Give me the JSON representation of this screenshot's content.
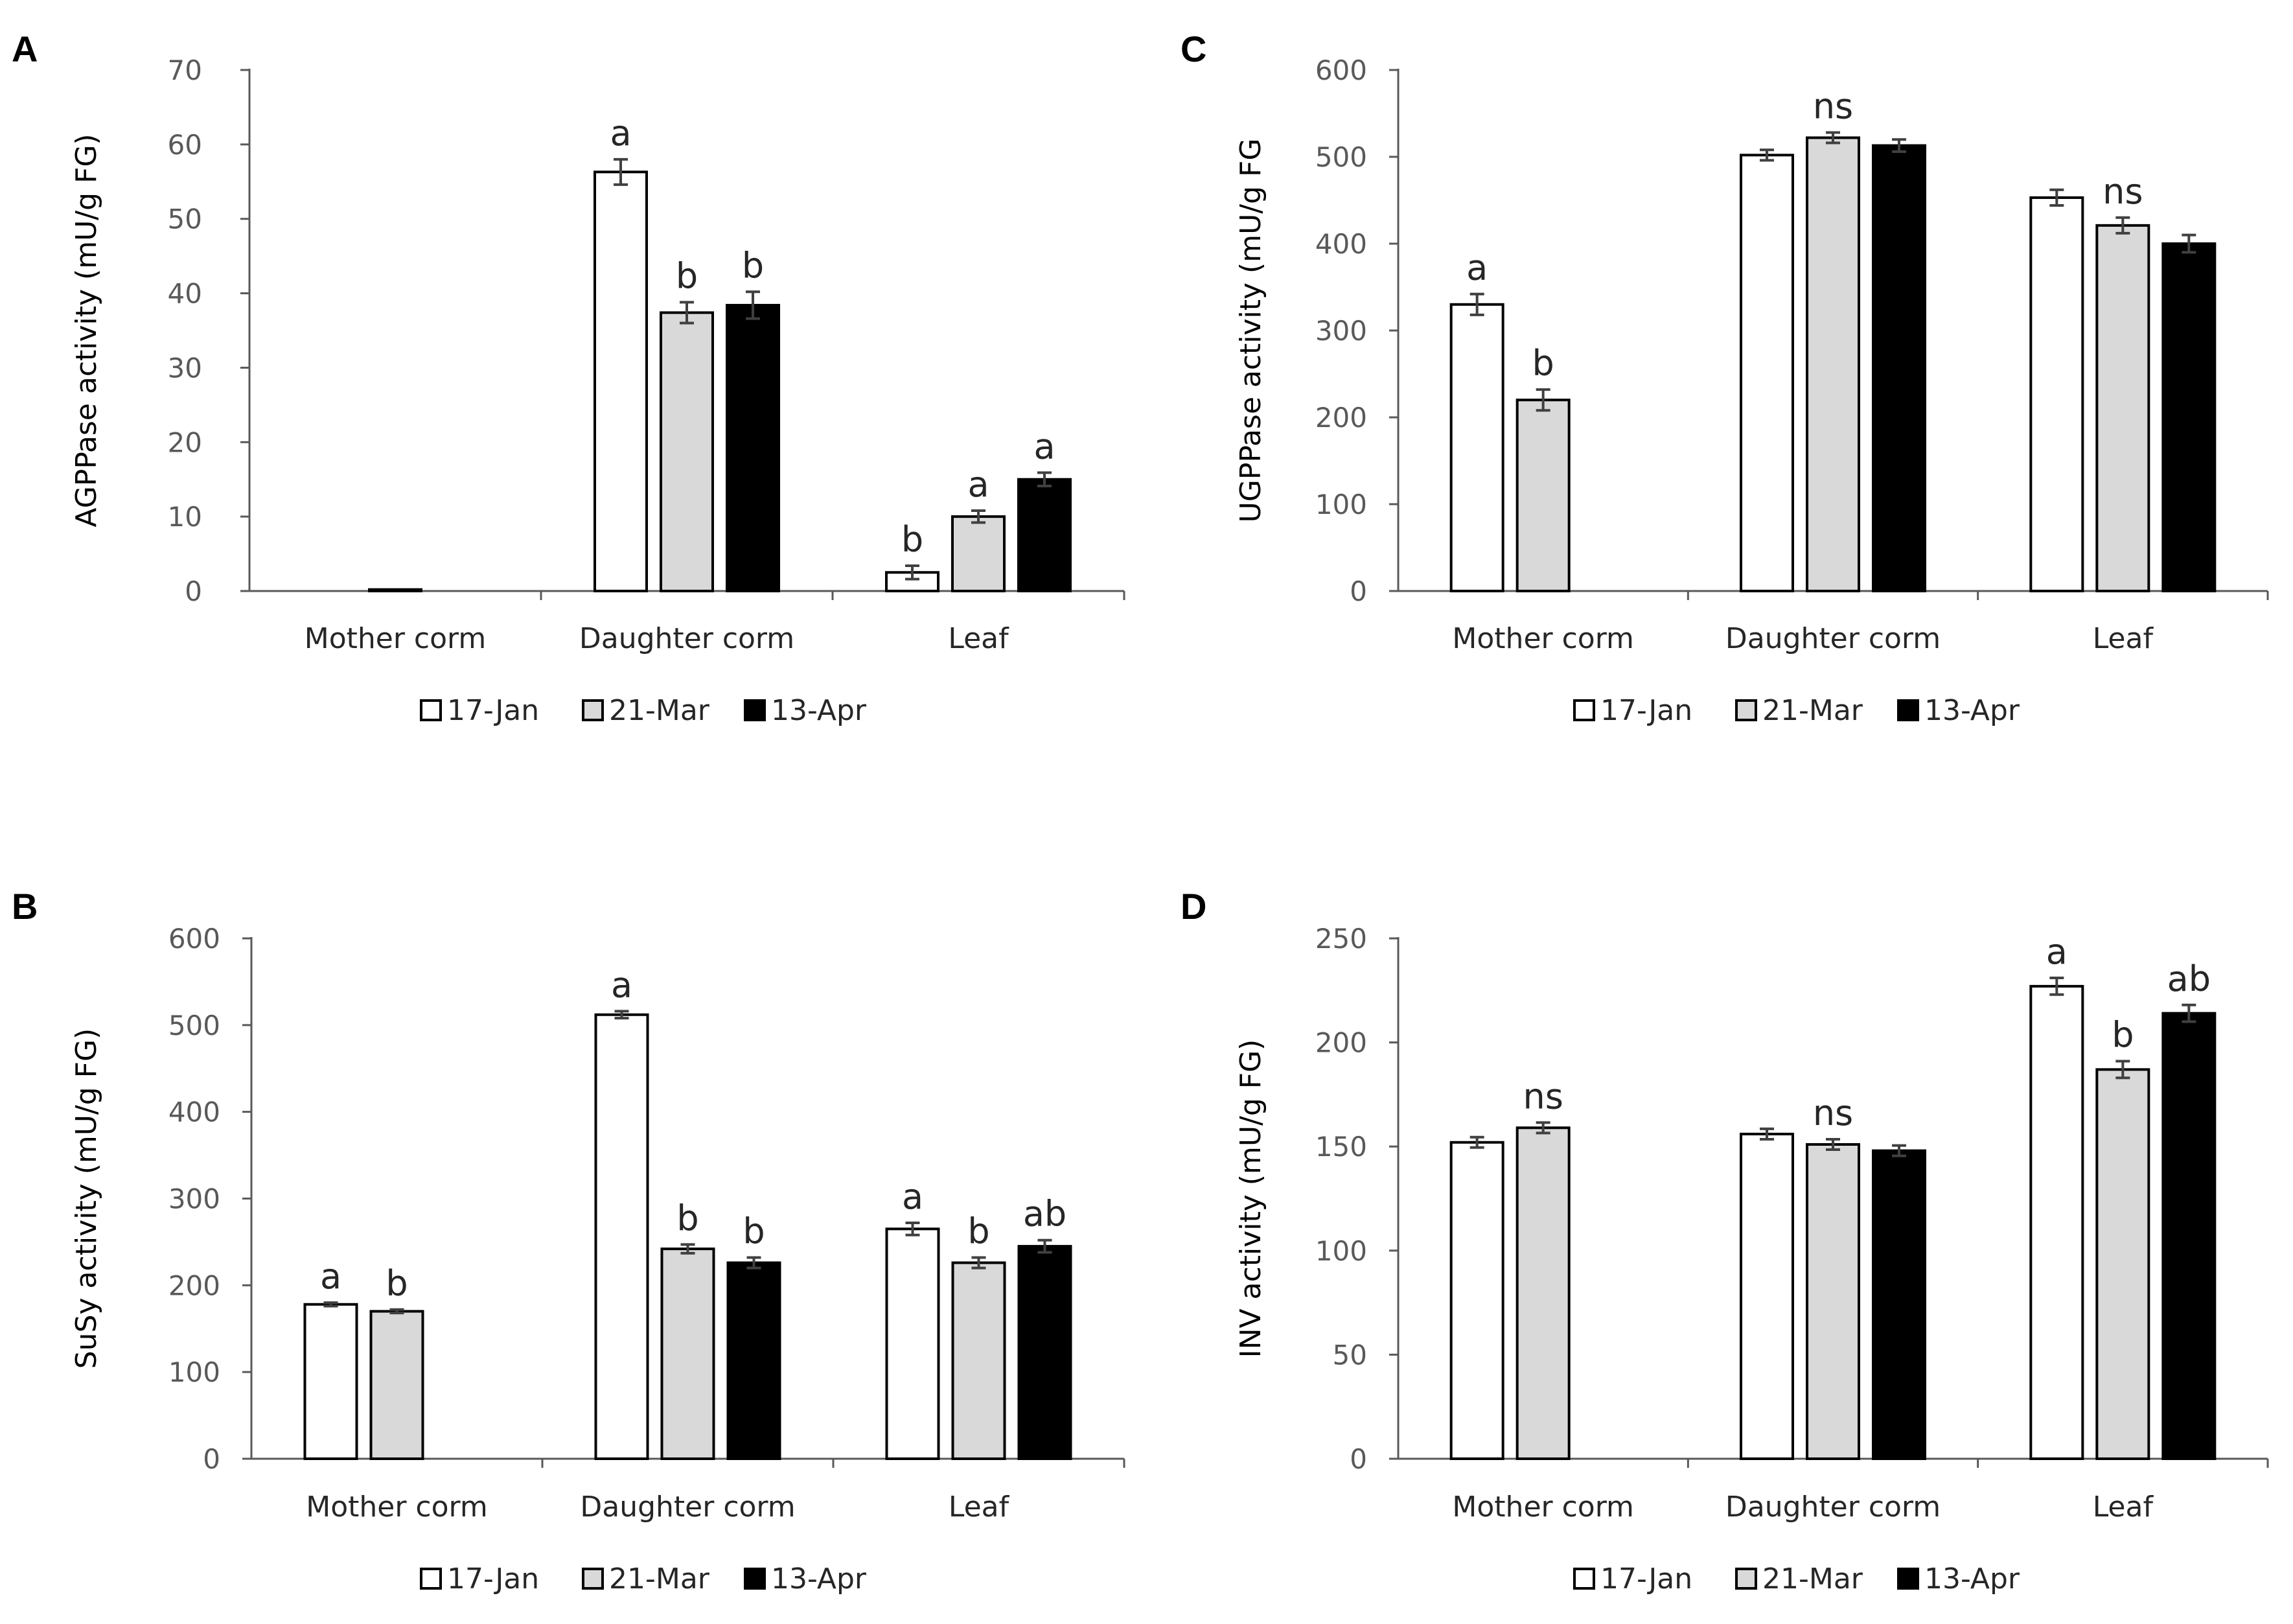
{
  "chart_data": [
    {
      "panel": "A",
      "type": "bar",
      "ylabel": "AGPPase activity (mU/g FG)",
      "ylim": [
        0,
        70
      ],
      "yticks": [
        0,
        10,
        20,
        30,
        40,
        50,
        60,
        70
      ],
      "categories": [
        "Mother corm",
        "Daughter corm",
        "Leaf"
      ],
      "series": [
        {
          "name": "17-Jan",
          "color": "#ffffff",
          "values": [
            0,
            56.3,
            2.5
          ],
          "errors": [
            0,
            1.7,
            0.9
          ],
          "labels": [
            "",
            "a",
            "b"
          ]
        },
        {
          "name": "21-Mar",
          "color": "#d9d9d9",
          "values": [
            0.2,
            37.4,
            10.0
          ],
          "errors": [
            0,
            1.4,
            0.8
          ],
          "labels": [
            "",
            "b",
            "a"
          ]
        },
        {
          "name": "13-Apr",
          "color": "#000000",
          "values": [
            0,
            38.4,
            15.0
          ],
          "errors": [
            0,
            1.8,
            0.9
          ],
          "labels": [
            "",
            "b",
            "a"
          ]
        }
      ],
      "legend_position": "bottom"
    },
    {
      "panel": "B",
      "type": "bar",
      "ylabel": "SuSy activity (mU/g FG)",
      "ylim": [
        0,
        600
      ],
      "yticks": [
        0,
        100,
        200,
        300,
        400,
        500,
        600
      ],
      "categories": [
        "Mother corm",
        "Daughter corm",
        "Leaf"
      ],
      "series": [
        {
          "name": "17-Jan",
          "color": "#ffffff",
          "values": [
            178,
            512,
            265
          ],
          "errors": [
            2,
            4,
            7
          ],
          "labels": [
            "a",
            "a",
            "a"
          ]
        },
        {
          "name": "21-Mar",
          "color": "#d9d9d9",
          "values": [
            170,
            242,
            226
          ],
          "errors": [
            2,
            5,
            6
          ],
          "labels": [
            "b",
            "b",
            "b"
          ]
        },
        {
          "name": "13-Apr",
          "color": "#000000",
          "values": [
            0,
            226,
            245
          ],
          "errors": [
            0,
            6,
            7
          ],
          "labels": [
            "",
            "b",
            "ab"
          ]
        }
      ],
      "legend_position": "bottom"
    },
    {
      "panel": "C",
      "type": "bar",
      "ylabel": "UGPPase activity (mU/g FG",
      "ylim": [
        0,
        600
      ],
      "yticks": [
        0,
        100,
        200,
        300,
        400,
        500,
        600
      ],
      "categories": [
        "Mother corm",
        "Daughter corm",
        "Leaf"
      ],
      "series": [
        {
          "name": "17-Jan",
          "color": "#ffffff",
          "values": [
            330,
            502,
            453
          ],
          "errors": [
            12,
            6,
            9
          ],
          "labels": [
            "a",
            "",
            ""
          ]
        },
        {
          "name": "21-Mar",
          "color": "#d9d9d9",
          "values": [
            220,
            522,
            421
          ],
          "errors": [
            12,
            6,
            9
          ],
          "labels": [
            "b",
            "ns",
            "ns"
          ]
        },
        {
          "name": "13-Apr",
          "color": "#000000",
          "values": [
            0,
            513,
            400
          ],
          "errors": [
            0,
            7,
            10
          ],
          "labels": [
            "",
            "",
            ""
          ]
        }
      ],
      "legend_position": "bottom"
    },
    {
      "panel": "D",
      "type": "bar",
      "ylabel": "INV activity (mU/g FG)",
      "ylim": [
        0,
        250
      ],
      "yticks": [
        0,
        50,
        100,
        150,
        200,
        250
      ],
      "categories": [
        "Mother corm",
        "Daughter corm",
        "Leaf"
      ],
      "series": [
        {
          "name": "17-Jan",
          "color": "#ffffff",
          "values": [
            152,
            156,
            227
          ],
          "errors": [
            2.5,
            2.5,
            4
          ],
          "labels": [
            "",
            "",
            "a"
          ]
        },
        {
          "name": "21-Mar",
          "color": "#d9d9d9",
          "values": [
            159,
            151,
            187
          ],
          "errors": [
            2.5,
            2.5,
            4
          ],
          "labels": [
            "ns",
            "ns",
            "b"
          ]
        },
        {
          "name": "13-Apr",
          "color": "#000000",
          "values": [
            0,
            148,
            214
          ],
          "errors": [
            0,
            2.5,
            4
          ],
          "labels": [
            "",
            "",
            "ab"
          ]
        }
      ],
      "legend_position": "bottom"
    }
  ]
}
